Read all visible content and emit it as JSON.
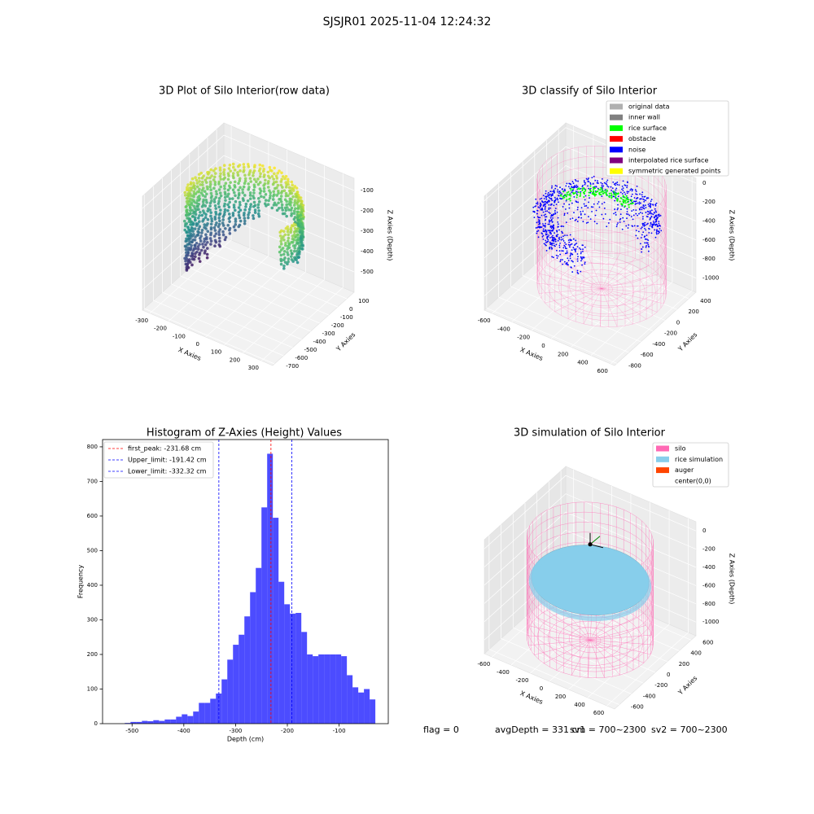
{
  "suptitle": "SJSJR01 2025-11-04 12:24:32",
  "footer": [
    "flag = 0",
    "avgDepth = 331 cm",
    "sv1 = 700~2300",
    "sv2 = 700~2300"
  ],
  "chart_data": [
    {
      "type": "scatter3d",
      "title": "3D Plot of Silo Interior(row data)",
      "xlabel": "X Axies",
      "ylabel": "Y Axies",
      "zlabel": "Z Axies (Depth)",
      "xlim": [
        -340,
        360
      ],
      "ylim": [
        -720,
        180
      ],
      "zlim": [
        -600,
        -40
      ],
      "xticks": [
        -300,
        -200,
        -100,
        0,
        100,
        200,
        300
      ],
      "yticks": [
        -700,
        -600,
        -500,
        -400,
        -300,
        -200,
        -100,
        0,
        100
      ],
      "zticks": [
        -500,
        -400,
        -300,
        -200,
        -100
      ]
    },
    {
      "type": "classify3d",
      "title": "3D classify of Silo Interior",
      "xlabel": "X Axies",
      "ylabel": "Y Axies",
      "zlabel": "Z Axies (Depth)",
      "xlim": [
        -680,
        640
      ],
      "ylim": [
        -840,
        520
      ],
      "zlim": [
        -1150,
        50
      ],
      "xticks": [
        -600,
        -400,
        -200,
        0,
        200,
        400,
        600
      ],
      "yticks": [
        -800,
        -600,
        -400,
        -200,
        0,
        200,
        400
      ],
      "zticks": [
        -1000,
        -800,
        -600,
        -400,
        -200,
        0
      ],
      "legend": [
        {
          "name": "original data",
          "color": "#b0b0b0"
        },
        {
          "name": "inner wall",
          "color": "#808080"
        },
        {
          "name": "rice surface",
          "color": "#00ff00"
        },
        {
          "name": "obstacle",
          "color": "#ff0000"
        },
        {
          "name": "noise",
          "color": "#0000ff"
        },
        {
          "name": "interpolated rice surface",
          "color": "#800080"
        },
        {
          "name": "symmetric generated points",
          "color": "#ffff00"
        }
      ]
    },
    {
      "type": "histogram",
      "title": "Histogram of Z-Axies (Height) Values",
      "xlabel": "Depth (cm)",
      "ylabel": "Frequency",
      "color": "#0000ff",
      "alpha": 0.7,
      "bins": [
        -514,
        -503,
        -492,
        -481,
        -470,
        -459,
        -448,
        -437,
        -426,
        -415,
        -404,
        -393,
        -382,
        -371,
        -360,
        -349,
        -338,
        -327,
        -316,
        -305,
        -294,
        -283,
        -272,
        -261,
        -250,
        -239,
        -228,
        -217,
        -206,
        -195,
        -184,
        -173,
        -162,
        -151,
        -140,
        -129,
        -118,
        -107,
        -96,
        -85,
        -74,
        -63,
        -52,
        -41,
        -30
      ],
      "counts": [
        2,
        5,
        5,
        8,
        7,
        10,
        8,
        12,
        12,
        20,
        27,
        22,
        35,
        60,
        60,
        72,
        87,
        128,
        185,
        228,
        257,
        310,
        380,
        450,
        625,
        780,
        595,
        410,
        345,
        318,
        320,
        265,
        200,
        195,
        200,
        200,
        200,
        200,
        195,
        140,
        105,
        90,
        100,
        70
      ],
      "lines": [
        {
          "name": "first_peak: -231.68 cm",
          "value": -231.68,
          "color": "#ff0000"
        },
        {
          "name": "Upper_limit: -191.42 cm",
          "value": -191.42,
          "color": "#0000ff"
        },
        {
          "name": "Lower_limit: -332.32 cm",
          "value": -332.32,
          "color": "#0000ff"
        }
      ],
      "legend_loc": "upper left",
      "xlim": [
        -557,
        -5
      ],
      "ylim": [
        0,
        821
      ],
      "xticks": [
        -500,
        -400,
        -300,
        -200,
        -100
      ],
      "yticks": [
        0,
        100,
        200,
        300,
        400,
        500,
        600,
        700,
        800
      ]
    },
    {
      "type": "simulation3d",
      "title": "3D simulation of Silo Interior",
      "xlabel": "X Axies",
      "ylabel": "Y Axies",
      "zlabel": "Z Axies (Depth)",
      "xlim": [
        -680,
        680
      ],
      "ylim": [
        -680,
        680
      ],
      "zlim": [
        -1150,
        100
      ],
      "xticks": [
        -600,
        -400,
        -200,
        0,
        200,
        400,
        600
      ],
      "yticks": [
        -600,
        -400,
        -200,
        0,
        200,
        400,
        600
      ],
      "zticks": [
        -1000,
        -800,
        -600,
        -400,
        -200,
        0
      ],
      "legend": [
        {
          "name": "silo",
          "color": "#ff69b4"
        },
        {
          "name": "rice simulation",
          "color": "#87ceeb"
        },
        {
          "name": "auger",
          "color": "#ff4500"
        },
        {
          "name": "center(0,0)",
          "color": "#ffffff"
        }
      ]
    }
  ]
}
